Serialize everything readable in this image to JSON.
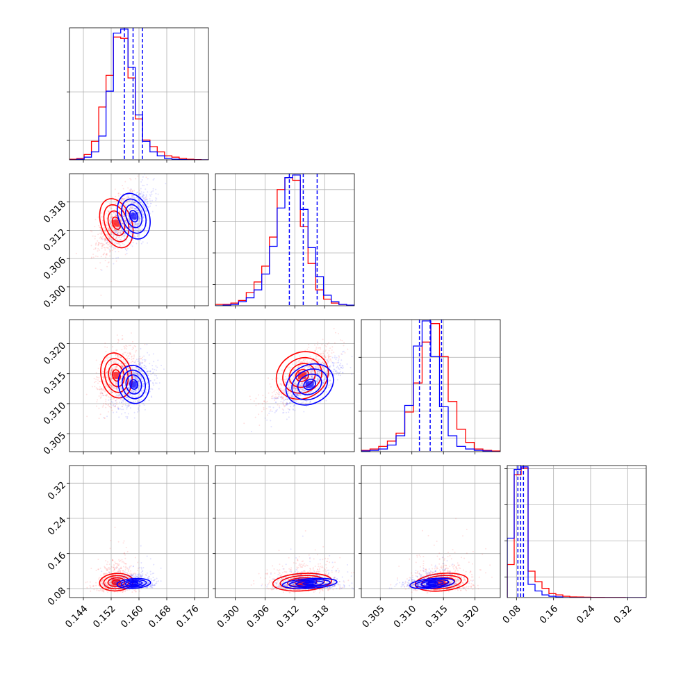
{
  "chart_data": {
    "type": "corner",
    "params": [
      {
        "range": [
          0.14,
          0.18
        ],
        "ticks": [
          "0.144",
          "0.152",
          "0.160",
          "0.168",
          "0.176"
        ],
        "tick_values": [
          0.144,
          0.152,
          0.16,
          0.168,
          0.176
        ]
      },
      {
        "range": [
          0.296,
          0.324
        ],
        "ticks": [
          "0.300",
          "0.306",
          "0.312",
          "0.318"
        ],
        "tick_values": [
          0.3,
          0.306,
          0.312,
          0.318
        ]
      },
      {
        "range": [
          0.302,
          0.324
        ],
        "ticks": [
          "0.305",
          "0.310",
          "0.315",
          "0.320"
        ],
        "tick_values": [
          0.305,
          0.31,
          0.315,
          0.32
        ]
      },
      {
        "range": [
          0.06,
          0.36
        ],
        "ticks": [
          "0.08",
          "0.16",
          "0.24",
          "0.32"
        ],
        "tick_values": [
          0.08,
          0.16,
          0.24,
          0.32
        ]
      }
    ],
    "series": [
      {
        "color": "#ff0000",
        "mean": [
          0.1535,
          0.3135,
          0.3147,
          0.095
        ],
        "std": [
          0.0022,
          0.0027,
          0.0019,
          0.018
        ],
        "quantiles": [
          [
            0.1558,
            0.1583,
            0.161
          ],
          [
            0.3109,
            0.3137,
            0.3165
          ],
          [
            0.3112,
            0.3129,
            0.3147
          ],
          [
            0.083,
            0.089,
            0.095
          ]
        ],
        "hist": [
          [
            0.005,
            0.01,
            0.04,
            0.14,
            0.4,
            0.64,
            0.93,
            0.92,
            0.62,
            0.31,
            0.15,
            0.1,
            0.06,
            0.03,
            0.02,
            0.01,
            0.005,
            0.002,
            0
          ],
          [
            0.01,
            0.01,
            0.02,
            0.04,
            0.1,
            0.18,
            0.3,
            0.52,
            0.88,
            0.97,
            0.95,
            0.6,
            0.32,
            0.12,
            0.05,
            0.02,
            0.01,
            0.005
          ],
          [
            0.01,
            0.02,
            0.04,
            0.08,
            0.14,
            0.3,
            0.52,
            0.83,
            0.97,
            0.72,
            0.38,
            0.17,
            0.07,
            0.02,
            0.01,
            0.005
          ],
          [
            0.25,
            0.93,
            0.98,
            0.2,
            0.12,
            0.07,
            0.03,
            0.02,
            0.01,
            0.005,
            0.004,
            0.003,
            0.002,
            0.002,
            0.001,
            0.001,
            0.001,
            0,
            0,
            0
          ]
        ]
      },
      {
        "color": "#0000ff",
        "mean": [
          0.1585,
          0.315,
          0.3132,
          0.092
        ],
        "std": [
          0.0022,
          0.0025,
          0.0016,
          0.01
        ],
        "quantiles": [
          [
            0.1558,
            0.1583,
            0.161
          ],
          [
            0.3109,
            0.3137,
            0.3165
          ],
          [
            0.3112,
            0.3129,
            0.3147
          ],
          [
            0.083,
            0.089,
            0.095
          ]
        ],
        "hist": [
          [
            0,
            0.005,
            0.02,
            0.06,
            0.18,
            0.52,
            0.96,
            0.99,
            0.7,
            0.34,
            0.14,
            0.06,
            0.03,
            0.01,
            0.005,
            0.002,
            0,
            0,
            0
          ],
          [
            0,
            0.005,
            0.01,
            0.03,
            0.06,
            0.12,
            0.24,
            0.45,
            0.74,
            0.97,
            0.99,
            0.73,
            0.44,
            0.22,
            0.08,
            0.03,
            0.01,
            0.005
          ],
          [
            0.005,
            0.01,
            0.02,
            0.05,
            0.12,
            0.35,
            0.8,
            0.99,
            0.72,
            0.34,
            0.12,
            0.04,
            0.02,
            0.01,
            0.005,
            0
          ],
          [
            0.45,
            0.97,
            0.99,
            0.1,
            0.05,
            0.02,
            0.01,
            0.005,
            0,
            0,
            0,
            0,
            0,
            0,
            0,
            0,
            0,
            0,
            0,
            0
          ]
        ]
      }
    ],
    "hist_max": [
      136,
      125,
      98,
      128
    ],
    "hist_yticks": [
      [
        20,
        70
      ],
      [
        20,
        50,
        80,
        110
      ],
      [
        10,
        30,
        50,
        70
      ],
      [
        20,
        55,
        90,
        125
      ]
    ],
    "correlations": {
      "0-1": 0.55,
      "0-2": 0.35,
      "1-2": 0.8,
      "0-3": 0.1,
      "1-3": 0.1,
      "2-3": 0.15
    },
    "grid": true,
    "tick_label_rotation": 45
  }
}
